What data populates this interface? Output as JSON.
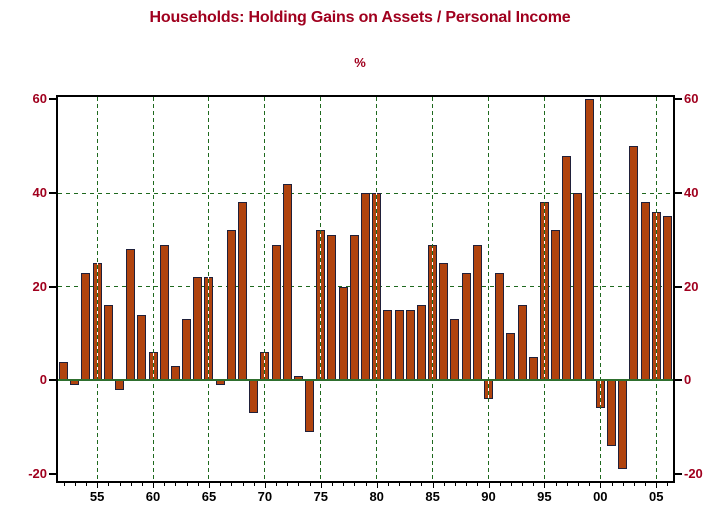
{
  "header": {
    "title": "Households: Holding Gains on Assets / Personal Income",
    "units": "%"
  },
  "colors": {
    "title_text": "#A0001E",
    "axis_tick_label": "#A0001E",
    "x_tick_label": "#000000",
    "bar_fill": "#B0430E",
    "bar_outline": "#20203A",
    "gridline_green": "#1E691E",
    "zero_line_green": "#2E6F2E",
    "axis_border": "#000000",
    "background": "#FFFFFF"
  },
  "chart_data": {
    "type": "bar",
    "title": "Households: Holding Gains on Assets / Personal Income",
    "subtitle": "%",
    "xlabel": "",
    "ylabel": "%",
    "legend": "none",
    "grid": "dashed green vertical every 5 years; dashed green horizontal at 20 and 40; solid green zero line",
    "years": [
      1952,
      1953,
      1954,
      1955,
      1956,
      1957,
      1958,
      1959,
      1960,
      1961,
      1962,
      1963,
      1964,
      1965,
      1966,
      1967,
      1968,
      1969,
      1970,
      1971,
      1972,
      1973,
      1974,
      1975,
      1976,
      1977,
      1978,
      1979,
      1980,
      1981,
      1982,
      1983,
      1984,
      1985,
      1986,
      1987,
      1988,
      1989,
      1990,
      1991,
      1992,
      1993,
      1994,
      1995,
      1996,
      1997,
      1998,
      1999,
      2000,
      2001,
      2002,
      2003,
      2004,
      2005,
      2006
    ],
    "values": [
      4,
      -1,
      23,
      25,
      16,
      -2,
      28,
      14,
      6,
      29,
      3,
      13,
      22,
      22,
      -1,
      32,
      38,
      -7,
      6,
      29,
      42,
      1,
      -11,
      32,
      31,
      20,
      31,
      40,
      40,
      15,
      15,
      15,
      16,
      29,
      25,
      13,
      23,
      29,
      -4,
      23,
      10,
      16,
      5,
      38,
      32,
      48,
      40,
      60,
      -6,
      -14,
      -19,
      50,
      38,
      36,
      35
    ],
    "x_tick_years": [
      1955,
      1960,
      1965,
      1970,
      1975,
      1980,
      1985,
      1990,
      1995,
      2000,
      2005
    ],
    "x_tick_labels": [
      "55",
      "60",
      "65",
      "70",
      "75",
      "80",
      "85",
      "90",
      "95",
      "00",
      "05"
    ],
    "y_ticks": [
      -20,
      0,
      20,
      40,
      60
    ],
    "y_tick_labels": [
      "-20",
      "0",
      "20",
      "40",
      "60"
    ],
    "h_gridlines_dashed": [
      20,
      40
    ],
    "zero_line_at": 0,
    "ylim": [
      -21.5,
      60.5
    ]
  }
}
